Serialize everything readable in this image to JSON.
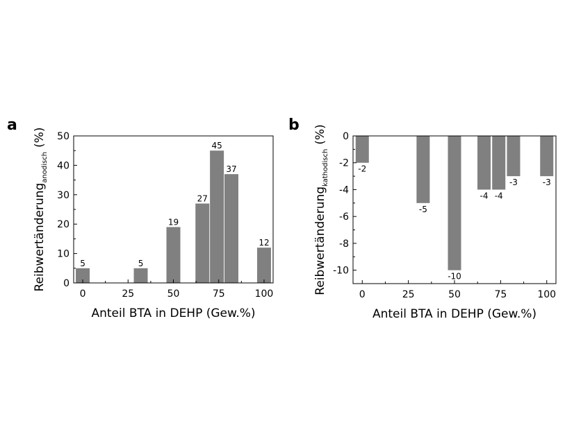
{
  "chart_data": [
    {
      "panel": "a",
      "type": "bar",
      "x": [
        0,
        32,
        50,
        66,
        74,
        82,
        100
      ],
      "values": [
        5,
        5,
        19,
        27,
        45,
        37,
        12
      ],
      "value_labels": [
        "5",
        "5",
        "19",
        "27",
        "45",
        "37",
        "12"
      ],
      "xlabel": "Anteil BTA in DEHP (Gew.%)",
      "ylabel_main": "Reibwertänderung",
      "ylabel_sub": "anodisch",
      "ylabel_unit": "(%)",
      "xlim": [
        -5,
        105
      ],
      "ylim": [
        0,
        50
      ],
      "xticks": [
        0,
        25,
        50,
        75,
        100
      ],
      "yticks": [
        0,
        10,
        20,
        30,
        40,
        50
      ],
      "grid": false
    },
    {
      "panel": "b",
      "type": "bar",
      "x": [
        0,
        33,
        50,
        66,
        74,
        82,
        100
      ],
      "values": [
        -2,
        -5,
        -10,
        -4,
        -4,
        -3,
        -3
      ],
      "value_labels": [
        "-2",
        "-5",
        "-10",
        "-4",
        "-4",
        "-3",
        "-3"
      ],
      "xlabel": "Anteil BTA in DEHP (Gew.%)",
      "ylabel_main": "Reibwertänderung",
      "ylabel_sub": "kathodisch",
      "ylabel_unit": "(%)",
      "xlim": [
        -5,
        105
      ],
      "ylim": [
        -11,
        0
      ],
      "xticks": [
        0,
        25,
        50,
        75,
        100
      ],
      "yticks": [
        0,
        -2,
        -4,
        -6,
        -8,
        -10
      ],
      "grid": false
    }
  ]
}
